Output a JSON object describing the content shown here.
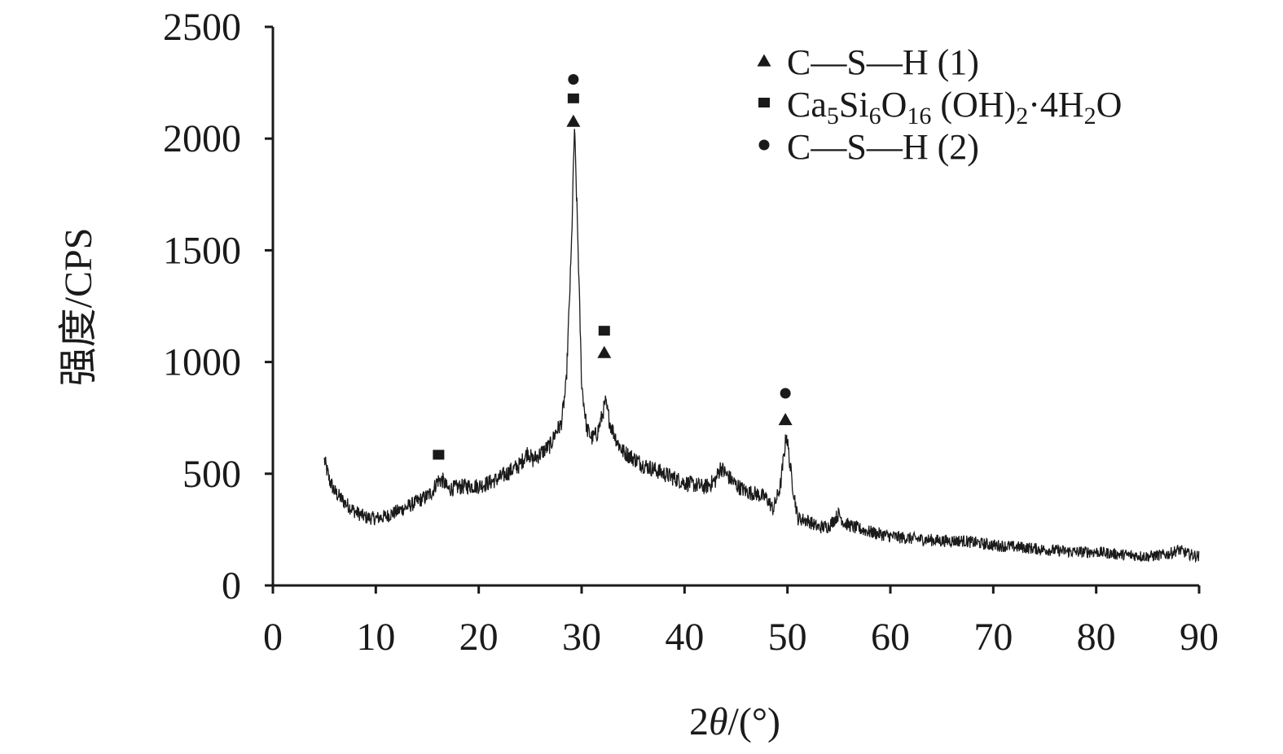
{
  "chart_data": {
    "type": "line",
    "title": "",
    "xlabel": {
      "prefix": "2",
      "symbol": "θ",
      "suffix": "/(°)"
    },
    "ylabel": "强度/CPS",
    "xlim": [
      0,
      90
    ],
    "ylim": [
      0,
      2500
    ],
    "x_ticks": [
      0,
      10,
      20,
      30,
      40,
      50,
      60,
      70,
      80,
      90
    ],
    "y_ticks": [
      0,
      500,
      1000,
      1500,
      2000,
      2500
    ],
    "grid": false,
    "legend_position": "top-right",
    "series": [
      {
        "color": "#1a1a1a",
        "x_range": [
          5,
          90
        ],
        "noise": 38,
        "x": [
          5,
          5.5,
          6,
          7,
          8,
          9,
          10,
          11,
          12,
          13,
          14,
          15,
          15.5,
          16,
          16.5,
          17,
          18,
          19,
          20,
          21,
          22,
          23,
          24,
          24.8,
          25.2,
          26,
          27,
          27.5,
          28,
          28.5,
          29,
          29.3,
          29.6,
          30,
          30.5,
          31,
          31.5,
          32,
          32.3,
          32.8,
          33.5,
          34,
          35,
          36,
          37,
          38,
          39,
          40,
          41,
          42,
          43,
          43.5,
          44,
          45,
          46,
          47,
          48,
          48.6,
          49.3,
          49.9,
          50.4,
          51,
          52,
          53,
          54,
          55,
          55.5,
          56.5,
          58,
          60,
          62,
          65,
          67,
          70,
          73,
          75,
          78,
          80,
          82,
          85,
          87,
          88,
          89,
          90
        ],
        "values": [
          560,
          470,
          420,
          370,
          330,
          305,
          300,
          310,
          330,
          350,
          375,
          400,
          420,
          470,
          470,
          430,
          440,
          445,
          445,
          460,
          480,
          510,
          540,
          600,
          560,
          590,
          630,
          690,
          720,
          900,
          1500,
          2050,
          1600,
          900,
          700,
          660,
          680,
          760,
          820,
          720,
          640,
          600,
          570,
          540,
          520,
          500,
          480,
          460,
          450,
          440,
          470,
          530,
          500,
          450,
          420,
          410,
          390,
          340,
          440,
          680,
          480,
          300,
          290,
          260,
          265,
          320,
          280,
          260,
          240,
          220,
          210,
          200,
          200,
          180,
          170,
          160,
          150,
          150,
          140,
          130,
          140,
          160,
          140,
          130
        ]
      }
    ],
    "legend": [
      {
        "marker": "triangle",
        "parts": [
          {
            "t": "C—S—H (1)"
          }
        ]
      },
      {
        "marker": "square",
        "parts": [
          {
            "t": "Ca"
          },
          {
            "t": "5",
            "sub": true
          },
          {
            "t": "Si"
          },
          {
            "t": "6",
            "sub": true
          },
          {
            "t": "O"
          },
          {
            "t": "16",
            "sub": true
          },
          {
            "t": " (OH)"
          },
          {
            "t": "2",
            "sub": true
          },
          {
            "t": "·4H"
          },
          {
            "t": "2",
            "sub": true
          },
          {
            "t": "O"
          }
        ]
      },
      {
        "marker": "circle",
        "parts": [
          {
            "t": "C—S—H (2)"
          }
        ]
      }
    ],
    "peak_markers": [
      {
        "x": 29.2,
        "y": 2080,
        "marker": "triangle"
      },
      {
        "x": 29.2,
        "y": 2180,
        "marker": "square"
      },
      {
        "x": 29.2,
        "y": 2265,
        "marker": "circle"
      },
      {
        "x": 16.1,
        "y": 585,
        "marker": "square"
      },
      {
        "x": 32.2,
        "y": 1045,
        "marker": "triangle"
      },
      {
        "x": 32.2,
        "y": 1140,
        "marker": "square"
      },
      {
        "x": 49.8,
        "y": 745,
        "marker": "triangle"
      },
      {
        "x": 49.8,
        "y": 860,
        "marker": "circle"
      }
    ]
  }
}
